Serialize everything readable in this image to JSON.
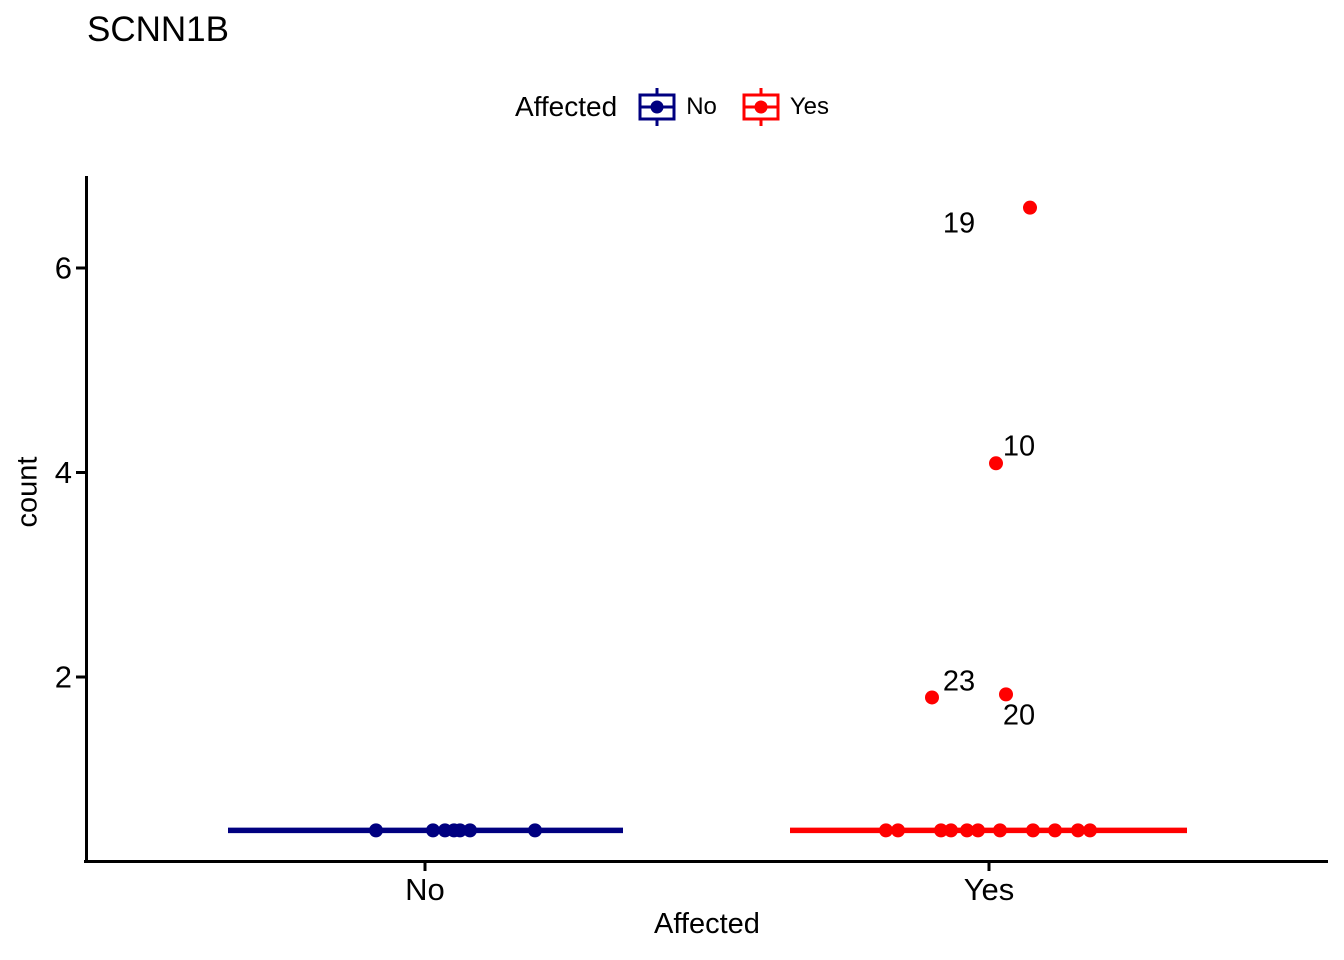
{
  "title": "SCNN1B",
  "legend": {
    "title": "Affected",
    "items": [
      {
        "label": "No",
        "color": "#000080"
      },
      {
        "label": "Yes",
        "color": "#FF0000"
      }
    ]
  },
  "chart_data": {
    "type": "boxplot_jitter",
    "title": "SCNN1B",
    "xlabel": "Affected",
    "ylabel": "count",
    "categories": [
      "No",
      "Yes"
    ],
    "category_x": [
      425,
      989
    ],
    "ylim": [
      0.2,
      6.9
    ],
    "yticks": [
      {
        "value": 2,
        "label": "2"
      },
      {
        "value": 4,
        "label": "4"
      },
      {
        "value": 6,
        "label": "6"
      }
    ],
    "grid": false,
    "legend_position": "top",
    "series": [
      {
        "name": "No",
        "color": "#000080",
        "median": 0.5,
        "line_x": [
          228,
          623
        ],
        "points": [
          {
            "v": 0.5,
            "x": 376
          },
          {
            "v": 0.5,
            "x": 433
          },
          {
            "v": 0.5,
            "x": 445
          },
          {
            "v": 0.5,
            "x": 454
          },
          {
            "v": 0.5,
            "x": 460
          },
          {
            "v": 0.5,
            "x": 470
          },
          {
            "v": 0.5,
            "x": 535
          }
        ]
      },
      {
        "name": "Yes",
        "color": "#FF0000",
        "median": 0.5,
        "line_x": [
          790,
          1187
        ],
        "points": [
          {
            "v": 0.5,
            "x": 886
          },
          {
            "v": 0.5,
            "x": 898
          },
          {
            "v": 0.5,
            "x": 941
          },
          {
            "v": 0.5,
            "x": 951
          },
          {
            "v": 0.5,
            "x": 967
          },
          {
            "v": 0.5,
            "x": 978
          },
          {
            "v": 0.5,
            "x": 1000
          },
          {
            "v": 0.5,
            "x": 1033
          },
          {
            "v": 0.5,
            "x": 1055
          },
          {
            "v": 0.5,
            "x": 1078
          },
          {
            "v": 0.5,
            "x": 1090
          },
          {
            "v": 6.59,
            "x": 1030,
            "label": "19",
            "label_dx": -71,
            "label_dy": 16
          },
          {
            "v": 4.09,
            "x": 996,
            "label": "10",
            "label_dx": 23,
            "label_dy": -17
          },
          {
            "v": 1.8,
            "x": 932,
            "label": "23",
            "label_dx": 27,
            "label_dy": -16
          },
          {
            "v": 1.83,
            "x": 1006,
            "label": "20",
            "label_dx": 13,
            "label_dy": 21
          }
        ]
      }
    ]
  }
}
